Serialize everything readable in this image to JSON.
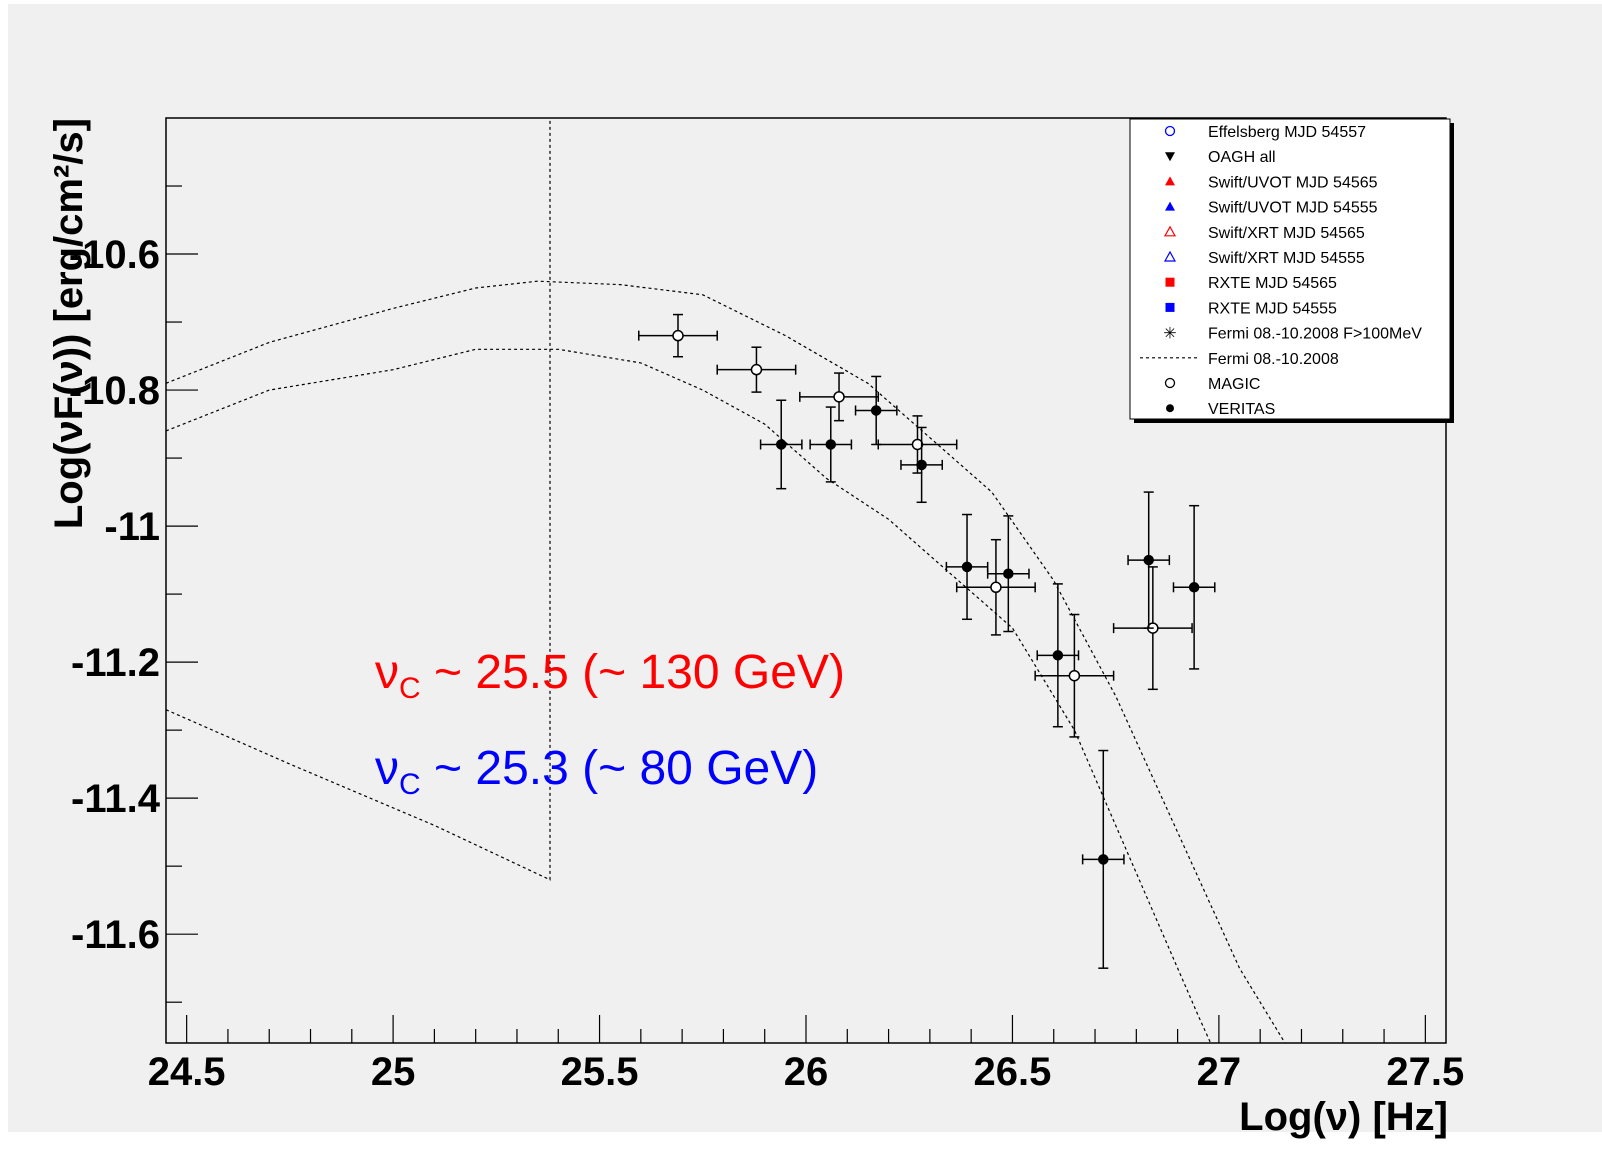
{
  "chart_data": {
    "type": "scatter",
    "xlabel": "Log(ν) [Hz]",
    "ylabel": "Log(νF(ν)) [erg/cm²/s]",
    "xlim": [
      24.45,
      27.55
    ],
    "ylim": [
      -11.76,
      -10.4
    ],
    "x_ticks": [
      24.5,
      25,
      25.5,
      26,
      26.5,
      27,
      27.5
    ],
    "x_tick_labels": [
      "24.5",
      "25",
      "25.5",
      "26",
      "26.5",
      "27",
      "27.5"
    ],
    "y_ticks": [
      -10.6,
      -10.8,
      -11,
      -11.2,
      -11.4,
      -11.6
    ],
    "y_tick_labels": [
      "-10.6",
      "-10.8",
      "-11",
      "-11.2",
      "-11.4",
      "-11.6"
    ],
    "grid": false,
    "legend_position": "top-right",
    "legend": [
      {
        "label": "Effelsberg MJD 54557",
        "marker": "open-circle",
        "color": "#0000ff"
      },
      {
        "label": "OAGH all",
        "marker": "down-triangle",
        "color": "#000000"
      },
      {
        "label": "Swift/UVOT MJD 54565",
        "marker": "triangle",
        "color": "#ff0000"
      },
      {
        "label": "Swift/UVOT MJD 54555",
        "marker": "triangle",
        "color": "#0000ff"
      },
      {
        "label": "Swift/XRT MJD 54565",
        "marker": "open-triangle",
        "color": "#ff0000"
      },
      {
        "label": "Swift/XRT MJD 54555",
        "marker": "open-triangle",
        "color": "#0000ff"
      },
      {
        "label": "RXTE  MJD 54565",
        "marker": "square",
        "color": "#ff0000"
      },
      {
        "label": "RXTE  MJD 54555",
        "marker": "square",
        "color": "#0000ff"
      },
      {
        "label": "Fermi 08.-10.2008 F>100MeV",
        "marker": "star",
        "color": "#000000"
      },
      {
        "label": "Fermi 08.-10.2008",
        "marker": "dashed-line",
        "color": "#000000"
      },
      {
        "label": "MAGIC",
        "marker": "open-circle",
        "color": "#000000"
      },
      {
        "label": "VERITAS",
        "marker": "filled-circle",
        "color": "#000000"
      }
    ],
    "series": [
      {
        "name": "MAGIC",
        "marker": "open-circle",
        "points": [
          {
            "x": 25.69,
            "y": -10.72,
            "xerr": 0.095,
            "yerr": 0.031
          },
          {
            "x": 25.88,
            "y": -10.77,
            "xerr": 0.095,
            "yerr": 0.033
          },
          {
            "x": 26.08,
            "y": -10.81,
            "xerr": 0.095,
            "yerr": 0.035
          },
          {
            "x": 26.27,
            "y": -10.88,
            "xerr": 0.095,
            "yerr": 0.042
          },
          {
            "x": 26.46,
            "y": -11.09,
            "xerr": 0.095,
            "yerr": 0.07
          },
          {
            "x": 26.65,
            "y": -11.22,
            "xerr": 0.095,
            "yerr": 0.09
          },
          {
            "x": 26.84,
            "y": -11.15,
            "xerr": 0.095,
            "yerr": 0.09
          }
        ]
      },
      {
        "name": "VERITAS",
        "marker": "filled-circle",
        "points": [
          {
            "x": 25.94,
            "y": -10.88,
            "xerr": 0.05,
            "yerr": 0.065
          },
          {
            "x": 26.06,
            "y": -10.88,
            "xerr": 0.05,
            "yerr": 0.055
          },
          {
            "x": 26.17,
            "y": -10.83,
            "xerr": 0.05,
            "yerr": 0.05
          },
          {
            "x": 26.28,
            "y": -10.91,
            "xerr": 0.05,
            "yerr": 0.055
          },
          {
            "x": 26.39,
            "y": -11.06,
            "xerr": 0.05,
            "yerr": 0.077
          },
          {
            "x": 26.49,
            "y": -11.07,
            "xerr": 0.05,
            "yerr": 0.085
          },
          {
            "x": 26.61,
            "y": -11.19,
            "xerr": 0.05,
            "yerr": 0.105
          },
          {
            "x": 26.72,
            "y": -11.49,
            "xerr": 0.05,
            "yerr": 0.16
          },
          {
            "x": 26.83,
            "y": -11.05,
            "xerr": 0.05,
            "yerr": 0.1
          },
          {
            "x": 26.94,
            "y": -11.09,
            "xerr": 0.05,
            "yerr": 0.12
          }
        ]
      },
      {
        "name": "Fermi 08.-10.2008",
        "style": "dashed-line",
        "lines": [
          [
            [
              24.45,
              -10.79
            ],
            [
              24.7,
              -10.73
            ],
            [
              25.0,
              -10.68
            ],
            [
              25.2,
              -10.65
            ],
            [
              25.35,
              -10.64
            ],
            [
              25.55,
              -10.645
            ],
            [
              25.75,
              -10.66
            ],
            [
              25.95,
              -10.72
            ],
            [
              26.15,
              -10.79
            ],
            [
              26.3,
              -10.87
            ],
            [
              26.45,
              -10.95
            ],
            [
              26.6,
              -11.08
            ],
            [
              26.75,
              -11.25
            ],
            [
              26.9,
              -11.45
            ],
            [
              27.05,
              -11.65
            ],
            [
              27.16,
              -11.76
            ]
          ],
          [
            [
              24.45,
              -10.86
            ],
            [
              24.7,
              -10.8
            ],
            [
              25.0,
              -10.77
            ],
            [
              25.2,
              -10.74
            ],
            [
              25.4,
              -10.74
            ],
            [
              25.6,
              -10.76
            ],
            [
              25.75,
              -10.8
            ],
            [
              25.9,
              -10.85
            ],
            [
              26.05,
              -10.93
            ],
            [
              26.2,
              -10.99
            ],
            [
              26.35,
              -11.07
            ],
            [
              26.5,
              -11.15
            ],
            [
              26.65,
              -11.3
            ],
            [
              26.8,
              -11.51
            ],
            [
              26.95,
              -11.72
            ],
            [
              26.98,
              -11.76
            ]
          ],
          [
            [
              24.45,
              -11.27
            ],
            [
              24.75,
              -11.35
            ],
            [
              25.1,
              -11.44
            ],
            [
              25.38,
              -11.52
            ],
            [
              25.38,
              -10.4
            ]
          ]
        ]
      }
    ],
    "annotations": [
      {
        "text": "ν",
        "sub": "C",
        "rest": " ~ 25.5 (~ 130 GeV)",
        "color": "#ff0000"
      },
      {
        "text": "ν",
        "sub": "C",
        "rest": " ~ 25.3 (~ 80 GeV)",
        "color": "#0000ff"
      }
    ]
  }
}
